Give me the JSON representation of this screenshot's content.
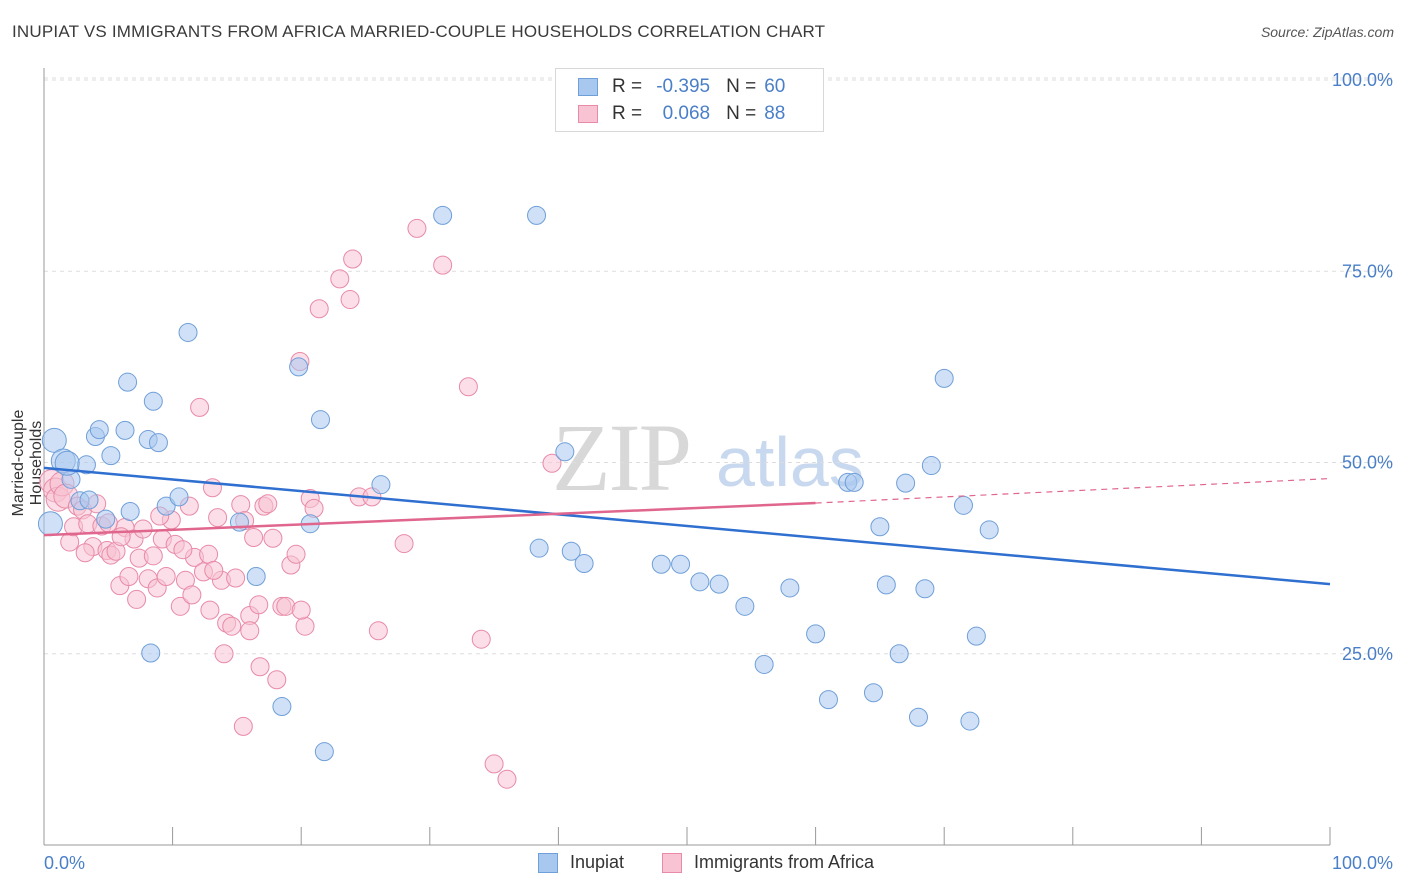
{
  "header": {
    "title": "INUPIAT VS IMMIGRANTS FROM AFRICA MARRIED-COUPLE HOUSEHOLDS CORRELATION CHART",
    "source": "Source: ZipAtlas.com"
  },
  "watermark": {
    "zip": "ZIP",
    "atlas": "atlas"
  },
  "legend": {
    "rows": [
      {
        "r_label": "R =",
        "r_value": "-0.395",
        "n_label": "N =",
        "n_value": "60",
        "color": "#a9c8f0",
        "border": "#6f9fd8"
      },
      {
        "r_label": "R =",
        "r_value": "0.068",
        "n_label": "N =",
        "n_value": "88",
        "color": "#f8c3d3",
        "border": "#e88aa8"
      }
    ]
  },
  "bottom_legend": {
    "items": [
      {
        "label": "Inupiat",
        "color": "#a9c8f0",
        "border": "#6f9fd8"
      },
      {
        "label": "Immigrants from Africa",
        "color": "#f8c3d3",
        "border": "#e88aa8"
      }
    ]
  },
  "chart_data": {
    "type": "scatter",
    "title": "INUPIAT VS IMMIGRANTS FROM AFRICA MARRIED-COUPLE HOUSEHOLDS CORRELATION CHART",
    "xlabel": "",
    "ylabel": "Married-couple Households",
    "xlim": [
      0,
      100
    ],
    "ylim": [
      0,
      105
    ],
    "x_tick_labels": [
      "0.0%",
      "100.0%"
    ],
    "y_ticks": [
      25,
      50,
      75,
      100
    ],
    "y_tick_labels": [
      "25.0%",
      "50.0%",
      "75.0%",
      "100.0%"
    ],
    "grid": true,
    "legend_position": "top-center",
    "series": [
      {
        "name": "Inupiat",
        "color": "#6f9fd8",
        "fill": "#a9c8f0",
        "trend": {
          "x0": 0,
          "y0": 49.3,
          "x1": 100,
          "y1": 34.1,
          "dashed_from": null
        },
        "points": [
          [
            0.5,
            42.0
          ],
          [
            0.8,
            52.9
          ],
          [
            1.5,
            50.2
          ],
          [
            2.1,
            47.8
          ],
          [
            3.3,
            49.7
          ],
          [
            2.8,
            45.0
          ],
          [
            4.0,
            53.4
          ],
          [
            4.3,
            54.3
          ],
          [
            5.2,
            50.9
          ],
          [
            4.8,
            42.6
          ],
          [
            6.3,
            54.2
          ],
          [
            6.5,
            60.5
          ],
          [
            6.7,
            43.6
          ],
          [
            8.1,
            53.0
          ],
          [
            8.5,
            58.0
          ],
          [
            8.9,
            52.6
          ],
          [
            9.5,
            44.3
          ],
          [
            10.5,
            45.5
          ],
          [
            11.2,
            67.0
          ],
          [
            15.2,
            42.2
          ],
          [
            16.5,
            35.1
          ],
          [
            18.5,
            18.1
          ],
          [
            19.8,
            62.5
          ],
          [
            20.7,
            42.0
          ],
          [
            21.5,
            55.6
          ],
          [
            21.8,
            12.2
          ],
          [
            26.2,
            47.1
          ],
          [
            31.0,
            82.3
          ],
          [
            38.3,
            82.3
          ],
          [
            38.5,
            38.8
          ],
          [
            40.5,
            51.4
          ],
          [
            41.0,
            38.4
          ],
          [
            42.0,
            36.8
          ],
          [
            48.0,
            36.7
          ],
          [
            49.5,
            36.7
          ],
          [
            51.0,
            34.4
          ],
          [
            52.5,
            34.1
          ],
          [
            54.5,
            31.2
          ],
          [
            56.0,
            23.6
          ],
          [
            58.0,
            33.6
          ],
          [
            60.0,
            27.6
          ],
          [
            61.0,
            19.0
          ],
          [
            62.5,
            47.4
          ],
          [
            63.0,
            47.4
          ],
          [
            64.5,
            19.9
          ],
          [
            65.0,
            41.6
          ],
          [
            65.5,
            34.0
          ],
          [
            66.5,
            25.0
          ],
          [
            67.0,
            47.3
          ],
          [
            68.0,
            16.7
          ],
          [
            68.5,
            33.5
          ],
          [
            69.0,
            49.6
          ],
          [
            70.0,
            61.0
          ],
          [
            71.5,
            44.4
          ],
          [
            72.0,
            16.2
          ],
          [
            72.5,
            27.3
          ],
          [
            73.5,
            41.2
          ],
          [
            8.3,
            25.1
          ],
          [
            3.5,
            45.1
          ],
          [
            1.8,
            49.9
          ]
        ]
      },
      {
        "name": "Immigrants from Africa",
        "color": "#e88aa8",
        "fill": "#f8c3d3",
        "trend": {
          "x0": 0,
          "y0": 40.5,
          "x1": 60,
          "y1": 44.7,
          "x2": 100,
          "y2": 47.9,
          "dashed_from": 60
        },
        "points": [
          [
            0.6,
            47.5
          ],
          [
            0.9,
            46.4
          ],
          [
            1.1,
            45.2
          ],
          [
            1.4,
            47.2
          ],
          [
            1.7,
            45.6
          ],
          [
            2.0,
            39.6
          ],
          [
            2.3,
            41.6
          ],
          [
            2.6,
            44.3
          ],
          [
            3.0,
            43.8
          ],
          [
            3.4,
            42.0
          ],
          [
            3.8,
            39.0
          ],
          [
            4.1,
            44.6
          ],
          [
            4.5,
            41.7
          ],
          [
            4.9,
            38.5
          ],
          [
            5.2,
            37.9
          ],
          [
            5.6,
            38.4
          ],
          [
            5.9,
            33.9
          ],
          [
            6.3,
            41.5
          ],
          [
            6.6,
            35.1
          ],
          [
            7.0,
            40.0
          ],
          [
            7.4,
            37.5
          ],
          [
            7.7,
            41.3
          ],
          [
            8.1,
            34.8
          ],
          [
            8.5,
            37.8
          ],
          [
            8.8,
            33.6
          ],
          [
            9.2,
            40.0
          ],
          [
            9.5,
            35.1
          ],
          [
            9.9,
            42.5
          ],
          [
            10.2,
            39.3
          ],
          [
            10.6,
            31.2
          ],
          [
            11.0,
            34.6
          ],
          [
            11.3,
            44.3
          ],
          [
            11.7,
            37.6
          ],
          [
            12.1,
            57.2
          ],
          [
            12.4,
            35.7
          ],
          [
            12.8,
            38.0
          ],
          [
            13.1,
            46.7
          ],
          [
            13.5,
            42.8
          ],
          [
            13.8,
            34.6
          ],
          [
            14.2,
            29.0
          ],
          [
            14.6,
            28.6
          ],
          [
            14.9,
            34.9
          ],
          [
            15.3,
            44.5
          ],
          [
            15.6,
            42.4
          ],
          [
            16.0,
            30.0
          ],
          [
            16.3,
            40.2
          ],
          [
            16.7,
            31.4
          ],
          [
            17.1,
            44.3
          ],
          [
            17.4,
            44.6
          ],
          [
            17.8,
            40.1
          ],
          [
            18.1,
            21.6
          ],
          [
            18.5,
            31.2
          ],
          [
            18.8,
            31.2
          ],
          [
            19.2,
            36.6
          ],
          [
            19.6,
            38.0
          ],
          [
            19.9,
            63.2
          ],
          [
            20.3,
            28.6
          ],
          [
            20.7,
            45.3
          ],
          [
            21.0,
            44.0
          ],
          [
            21.4,
            70.1
          ],
          [
            23.0,
            74.0
          ],
          [
            24.0,
            76.6
          ],
          [
            23.8,
            71.3
          ],
          [
            24.5,
            45.5
          ],
          [
            25.5,
            45.5
          ],
          [
            26.0,
            28.0
          ],
          [
            28.0,
            39.4
          ],
          [
            29.0,
            80.6
          ],
          [
            31.0,
            75.8
          ],
          [
            33.0,
            59.9
          ],
          [
            34.0,
            26.9
          ],
          [
            35.0,
            10.6
          ],
          [
            36.0,
            8.6
          ],
          [
            39.5,
            49.9
          ],
          [
            15.5,
            15.5
          ],
          [
            16.8,
            23.3
          ],
          [
            7.2,
            32.1
          ],
          [
            10.8,
            38.6
          ],
          [
            12.9,
            30.7
          ],
          [
            14.0,
            25.0
          ],
          [
            3.2,
            38.2
          ],
          [
            5.0,
            42.1
          ],
          [
            6.0,
            40.3
          ],
          [
            9.0,
            43.0
          ],
          [
            11.5,
            32.7
          ],
          [
            13.2,
            35.9
          ],
          [
            16.0,
            28.0
          ],
          [
            20.0,
            30.7
          ]
        ]
      }
    ]
  }
}
